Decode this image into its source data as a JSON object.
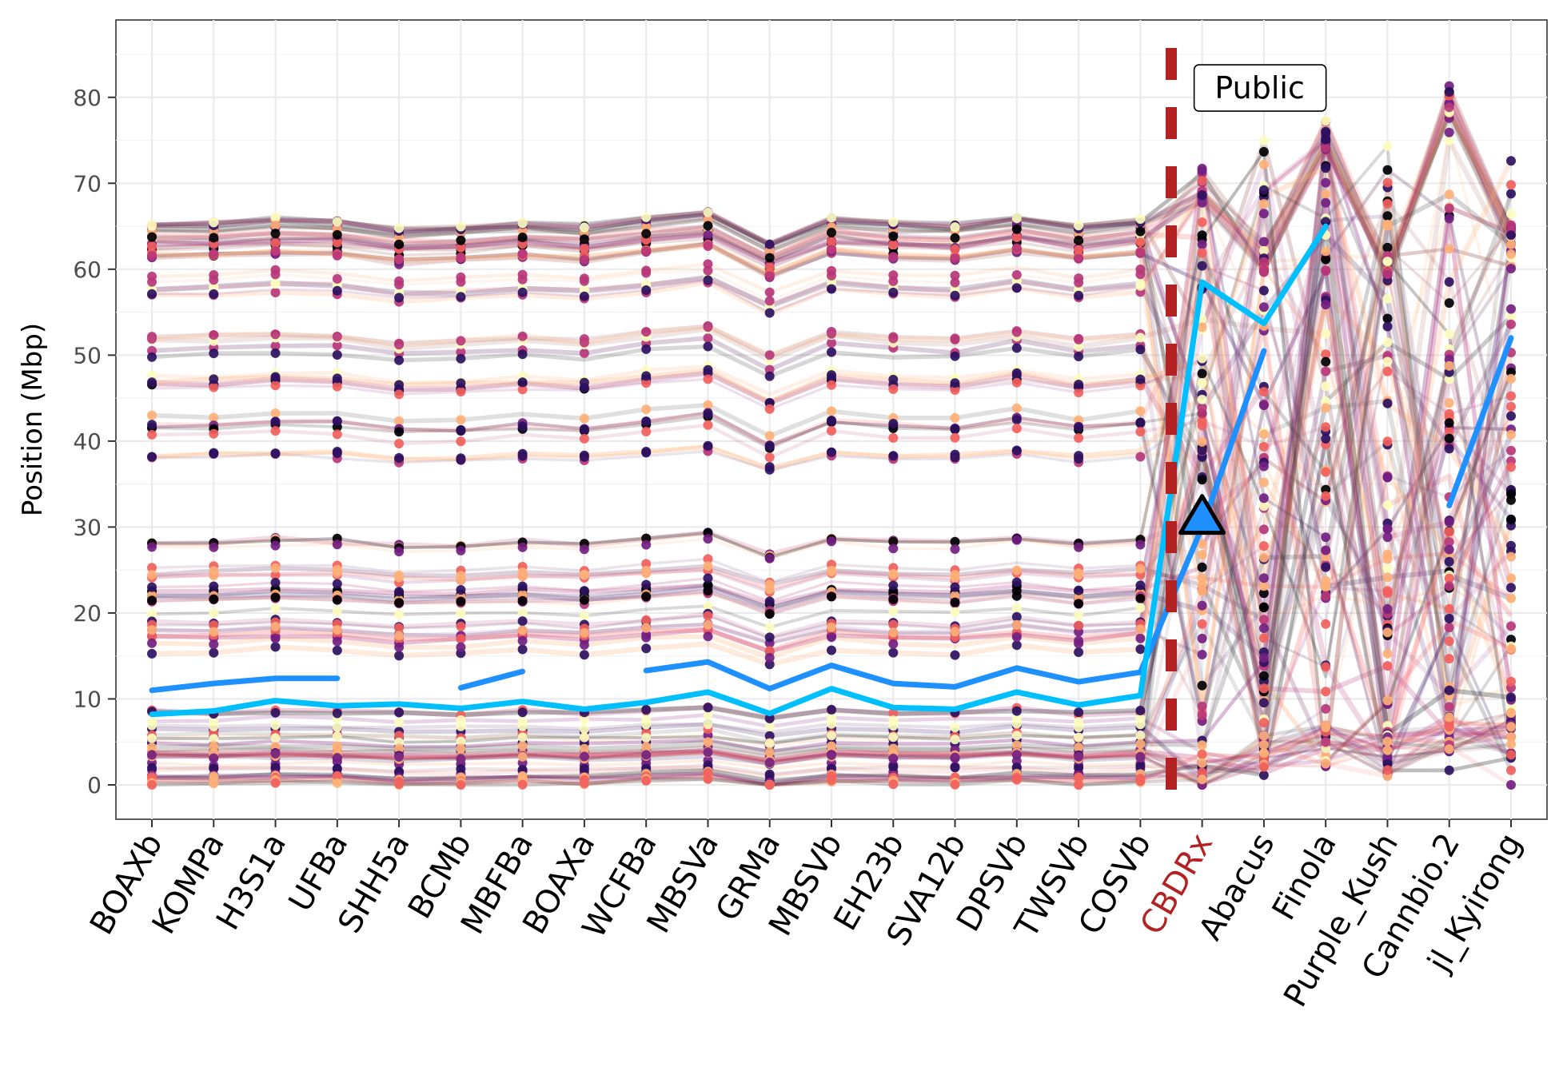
{
  "chart_data": {
    "type": "line",
    "title": "",
    "xlabel": "",
    "ylabel": "Position (Mbp)",
    "ylim": [
      -4,
      89
    ],
    "y_ticks": [
      0,
      10,
      20,
      30,
      40,
      50,
      60,
      70,
      80
    ],
    "grid": true,
    "legend": "none",
    "categories": [
      "BOAXb",
      "KOMPa",
      "H3S1a",
      "UFBa",
      "SHH5a",
      "BCMb",
      "MBFBa",
      "BOAXa",
      "WCFBa",
      "MBSVa",
      "GRMa",
      "MBSVb",
      "EH23b",
      "SVA12b",
      "DPSVb",
      "TWSVb",
      "COSVb",
      "CBDRx",
      "Abacus",
      "Finola",
      "Purple_Kush",
      "Cannbio.2",
      "jl_Kyirong"
    ],
    "highlight_category": "CBDRx",
    "highlight_color": "#b22222",
    "divider_between": [
      "COSVb",
      "CBDRx"
    ],
    "annotation": {
      "text": "Public",
      "after_category": "CBDRx",
      "y": 81
    },
    "marker": {
      "shape": "triangle",
      "category": "CBDRx",
      "y": 31,
      "color": "#1e90ff"
    },
    "palette": [
      "#000004",
      "#2c115f",
      "#721f81",
      "#b73779",
      "#f1605d",
      "#feb078",
      "#fcfdbf"
    ],
    "series": [
      {
        "name": "",
        "color": "#1e90ff",
        "values": [
          11.0,
          11.8,
          12.4,
          12.4,
          null,
          11.3,
          13.2,
          null,
          13.3,
          14.3,
          11.2,
          13.9,
          11.8,
          11.4,
          13.6,
          12.0,
          13.1,
          30.0,
          50.5,
          null,
          null,
          32.5,
          52.0
        ]
      },
      {
        "name": "",
        "color": "#00bfff",
        "values": [
          8.2,
          8.6,
          9.8,
          9.2,
          9.4,
          8.9,
          9.7,
          8.8,
          9.6,
          10.8,
          8.3,
          11.2,
          9.0,
          8.8,
          10.8,
          9.3,
          10.4,
          58.5,
          53.7,
          65.0,
          null,
          null,
          null
        ]
      }
    ],
    "background_series_count": 110
  }
}
